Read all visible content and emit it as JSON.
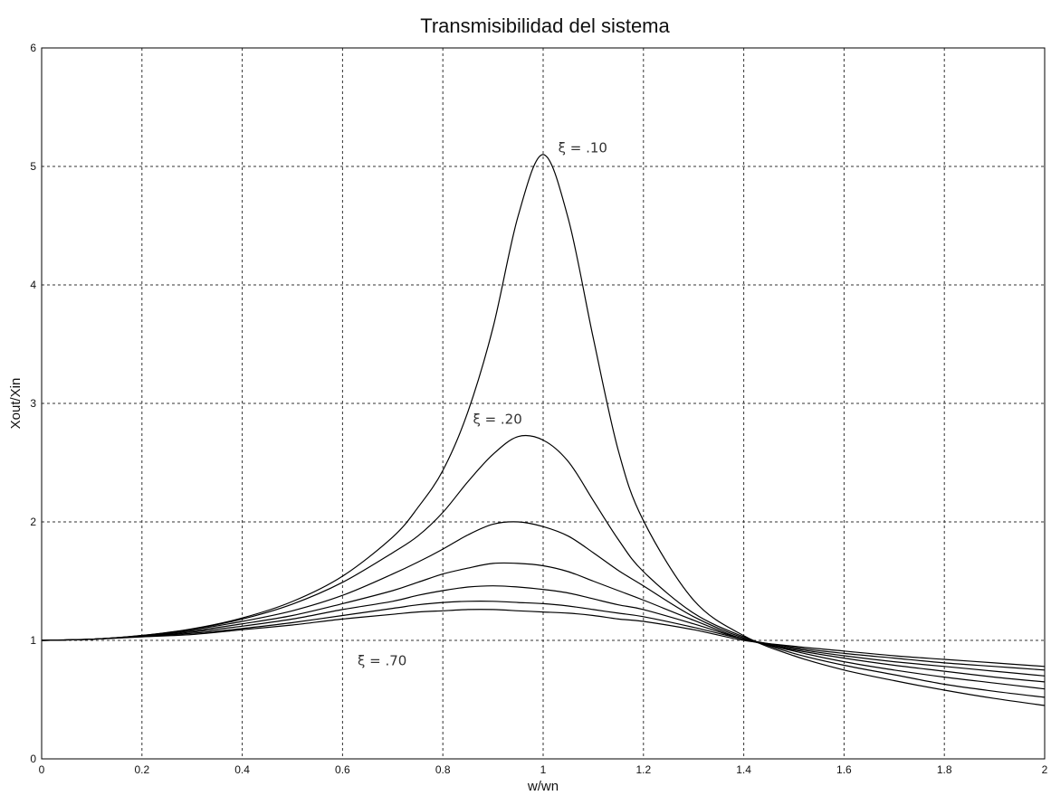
{
  "chart_data": {
    "type": "line",
    "title": "Transmisibilidad del sistema",
    "xlabel": "w/wn",
    "ylabel": "Xout/Xin",
    "xlim": [
      0,
      2
    ],
    "ylim": [
      0,
      6
    ],
    "xticks": [
      0,
      0.2,
      0.4,
      0.6,
      0.8,
      1,
      1.2,
      1.4,
      1.6,
      1.8,
      2
    ],
    "xtick_labels": [
      "0",
      "0.2",
      "0.4",
      "0.6",
      "0.8",
      "1",
      "1.2",
      "1.4",
      "1.6",
      "1.8",
      "2"
    ],
    "yticks": [
      0,
      1,
      2,
      3,
      4,
      5,
      6
    ],
    "ytick_labels": [
      "0",
      "1",
      "2",
      "3",
      "4",
      "5",
      "6"
    ],
    "grid": true,
    "x": [
      0,
      0.1,
      0.2,
      0.3,
      0.4,
      0.5,
      0.6,
      0.7,
      0.75,
      0.8,
      0.85,
      0.9,
      0.95,
      1.0,
      1.05,
      1.1,
      1.15,
      1.2,
      1.3,
      1.4,
      1.5,
      1.6,
      1.7,
      1.8,
      1.9,
      2.0
    ],
    "series": [
      {
        "values": [
          1.0,
          1.01,
          1.042,
          1.098,
          1.189,
          1.328,
          1.542,
          1.872,
          2.12,
          2.434,
          2.93,
          3.64,
          4.58,
          5.1,
          4.56,
          3.55,
          2.6,
          2.01,
          1.34,
          1.04,
          0.87,
          0.75,
          0.66,
          0.58,
          0.51,
          0.45
        ]
      },
      {
        "values": [
          1.0,
          1.01,
          1.041,
          1.095,
          1.18,
          1.306,
          1.49,
          1.74,
          1.88,
          2.08,
          2.34,
          2.57,
          2.72,
          2.69,
          2.51,
          2.18,
          1.85,
          1.58,
          1.23,
          1.03,
          0.89,
          0.79,
          0.71,
          0.63,
          0.57,
          0.52
        ]
      },
      {
        "values": [
          1.0,
          1.01,
          1.04,
          1.09,
          1.16,
          1.25,
          1.38,
          1.56,
          1.66,
          1.77,
          1.89,
          1.98,
          2.0,
          1.96,
          1.88,
          1.74,
          1.59,
          1.46,
          1.2,
          1.02,
          0.91,
          0.82,
          0.75,
          0.69,
          0.64,
          0.59
        ]
      },
      {
        "values": [
          1.0,
          1.01,
          1.038,
          1.08,
          1.14,
          1.21,
          1.31,
          1.42,
          1.49,
          1.56,
          1.61,
          1.65,
          1.65,
          1.63,
          1.58,
          1.5,
          1.42,
          1.34,
          1.17,
          1.01,
          0.92,
          0.85,
          0.79,
          0.74,
          0.69,
          0.65
        ]
      },
      {
        "values": [
          1.0,
          1.01,
          1.035,
          1.07,
          1.12,
          1.18,
          1.26,
          1.33,
          1.38,
          1.42,
          1.45,
          1.46,
          1.45,
          1.43,
          1.4,
          1.35,
          1.3,
          1.26,
          1.14,
          1.01,
          0.93,
          0.87,
          0.82,
          0.78,
          0.74,
          0.7
        ]
      },
      {
        "values": [
          1.0,
          1.01,
          1.033,
          1.06,
          1.1,
          1.15,
          1.21,
          1.27,
          1.3,
          1.32,
          1.33,
          1.33,
          1.32,
          1.31,
          1.29,
          1.26,
          1.23,
          1.2,
          1.11,
          1.01,
          0.94,
          0.89,
          0.85,
          0.81,
          0.78,
          0.75
        ]
      },
      {
        "values": [
          1.0,
          1.01,
          1.03,
          1.05,
          1.09,
          1.13,
          1.18,
          1.22,
          1.24,
          1.25,
          1.26,
          1.26,
          1.25,
          1.24,
          1.23,
          1.21,
          1.18,
          1.16,
          1.09,
          1.0,
          0.95,
          0.91,
          0.87,
          0.84,
          0.81,
          0.78
        ]
      }
    ],
    "annotations": [
      {
        "text": "ξ  =  .10",
        "x": 1.03,
        "y": 5.12
      },
      {
        "text": "ξ  =  .20",
        "x": 0.86,
        "y": 2.83
      },
      {
        "text": "ξ  =  .70",
        "x": 0.63,
        "y": 0.79
      }
    ]
  },
  "colors": {
    "line": "#000000",
    "grid": "#333333",
    "background": "#ffffff"
  }
}
